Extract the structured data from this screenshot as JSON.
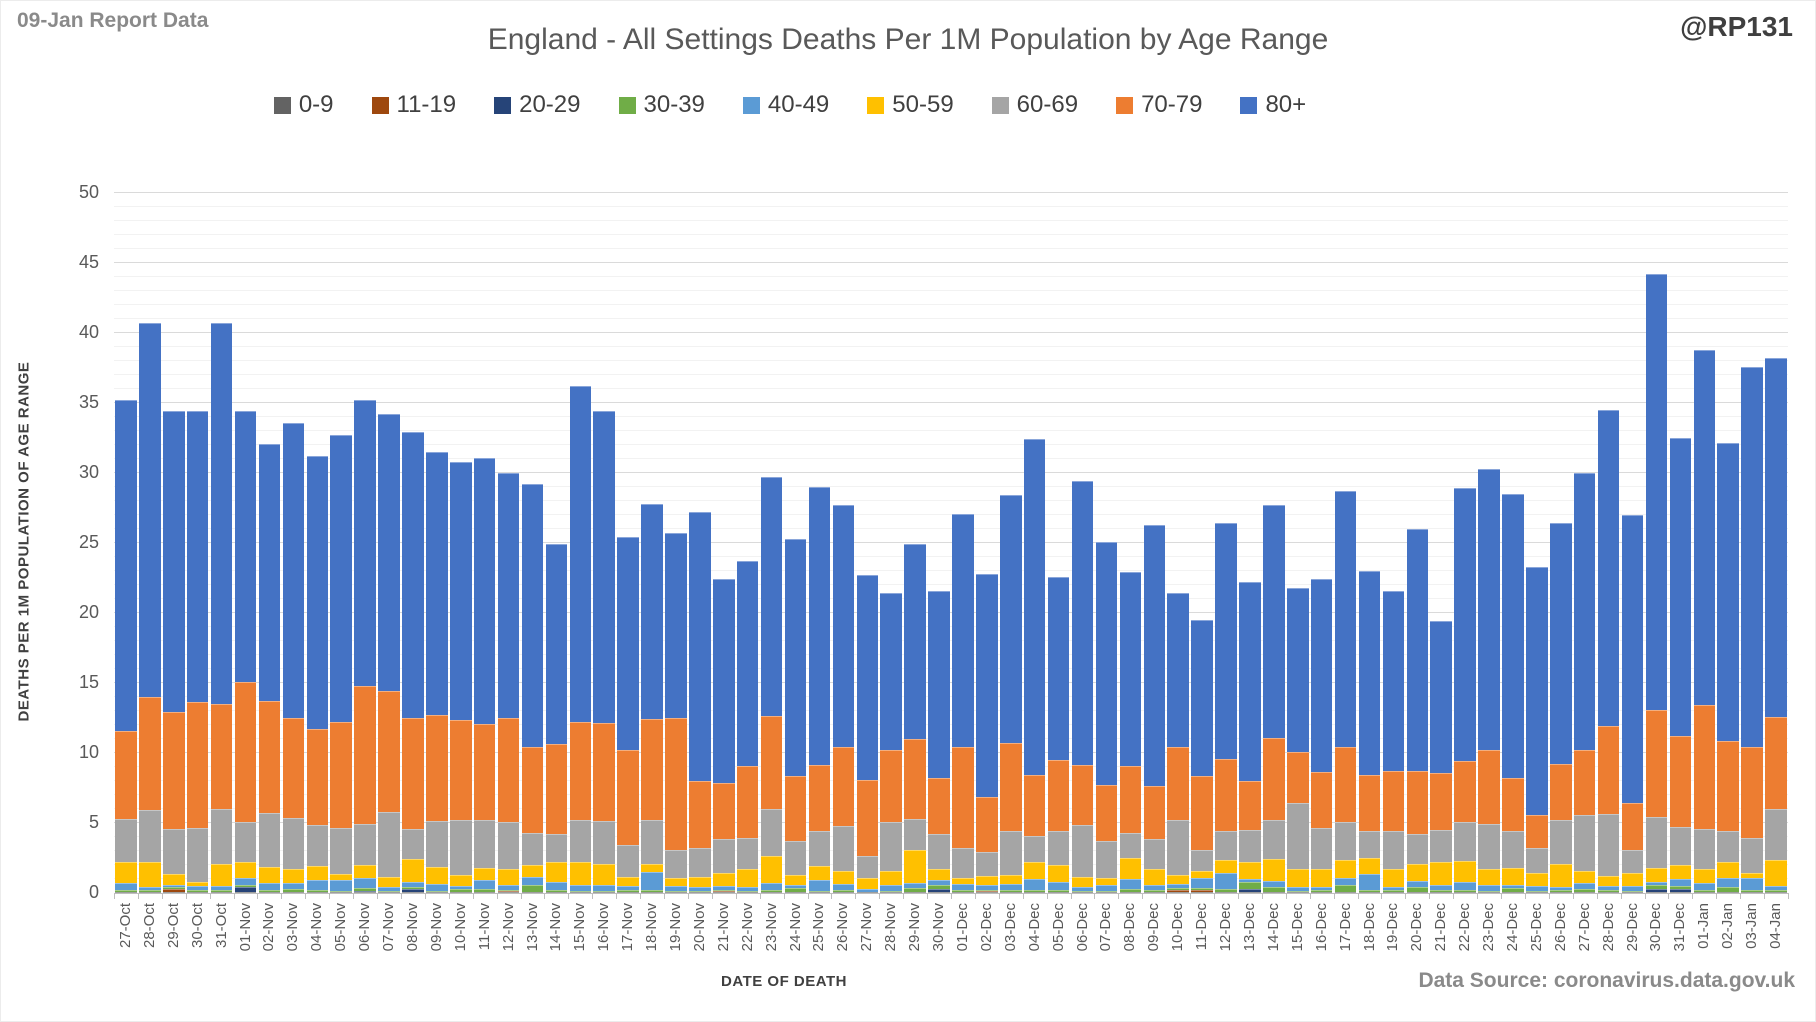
{
  "header": {
    "report_label": "09-Jan Report Data",
    "title": "England - All Settings Deaths Per 1M Population by Age Range",
    "watermark": "@RP131"
  },
  "footer": {
    "source": "Data Source: coronavirus.data.gov.uk"
  },
  "chart_data": {
    "type": "bar",
    "stacked": true,
    "title": "England - All Settings Deaths Per 1M Population by Age Range",
    "xlabel": "DATE OF DEATH",
    "ylabel": "DEATHS PER 1M POPULATION OF AGE RANGE",
    "ylim": [
      0,
      50
    ],
    "ytick_step": 5,
    "minor_grid_step": 1,
    "grid": true,
    "legend_position": "top",
    "axis_color": "#BFBFBF",
    "categories": [
      "27-Oct",
      "28-Oct",
      "29-Oct",
      "30-Oct",
      "31-Oct",
      "01-Nov",
      "02-Nov",
      "03-Nov",
      "04-Nov",
      "05-Nov",
      "06-Nov",
      "07-Nov",
      "08-Nov",
      "09-Nov",
      "10-Nov",
      "11-Nov",
      "12-Nov",
      "13-Nov",
      "14-Nov",
      "15-Nov",
      "16-Nov",
      "17-Nov",
      "18-Nov",
      "19-Nov",
      "20-Nov",
      "21-Nov",
      "22-Nov",
      "23-Nov",
      "24-Nov",
      "25-Nov",
      "26-Nov",
      "27-Nov",
      "28-Nov",
      "29-Nov",
      "30-Nov",
      "01-Dec",
      "02-Dec",
      "03-Dec",
      "04-Dec",
      "05-Dec",
      "06-Dec",
      "07-Dec",
      "08-Dec",
      "09-Dec",
      "10-Dec",
      "11-Dec",
      "12-Dec",
      "13-Dec",
      "14-Dec",
      "15-Dec",
      "16-Dec",
      "17-Dec",
      "18-Dec",
      "19-Dec",
      "20-Dec",
      "21-Dec",
      "22-Dec",
      "23-Dec",
      "24-Dec",
      "25-Dec",
      "26-Dec",
      "27-Dec",
      "28-Dec",
      "29-Dec",
      "30-Dec",
      "31-Dec",
      "01-Jan",
      "02-Jan",
      "03-Jan",
      "04-Jan"
    ],
    "series": [
      {
        "name": "0-9",
        "color": "#636363",
        "values": [
          0.05,
          0.05,
          0.05,
          0.05,
          0.05,
          0.05,
          0.05,
          0.05,
          0.05,
          0.05,
          0.05,
          0.1,
          0.05,
          0.05,
          0.05,
          0.05,
          0.05,
          0.05,
          0.05,
          0.05,
          0.05,
          0.05,
          0.05,
          0.05,
          0.05,
          0.05,
          0.05,
          0.05,
          0.05,
          0.05,
          0.05,
          0.05,
          0.05,
          0.05,
          0.05,
          0.05,
          0.05,
          0.05,
          0.05,
          0.05,
          0.05,
          0.05,
          0.05,
          0.05,
          0.05,
          0.05,
          0.05,
          0.05,
          0.05,
          0.05,
          0.05,
          0.05,
          0.05,
          0.05,
          0.05,
          0.05,
          0.05,
          0.05,
          0.05,
          0.05,
          0.05,
          0.05,
          0.1,
          0.05,
          0.05,
          0.05,
          0.05,
          0.05,
          0.05,
          0.05
        ]
      },
      {
        "name": "11-19",
        "color": "#9E480E",
        "values": [
          0.05,
          0,
          0.25,
          0,
          0,
          0.05,
          0,
          0,
          0,
          0,
          0,
          0,
          0,
          0,
          0,
          0,
          0.1,
          0,
          0,
          0,
          0,
          0,
          0,
          0,
          0,
          0.1,
          0,
          0,
          0,
          0,
          0,
          0,
          0,
          0,
          0,
          0,
          0.1,
          0,
          0,
          0,
          0,
          0,
          0,
          0,
          0.2,
          0.2,
          0,
          0,
          0,
          0,
          0,
          0,
          0,
          0,
          0,
          0,
          0,
          0,
          0,
          0,
          0,
          0,
          0,
          0,
          0,
          0,
          0,
          0,
          0,
          0
        ]
      },
      {
        "name": "20-29",
        "color": "#264478",
        "values": [
          0,
          0,
          0,
          0,
          0,
          0.3,
          0,
          0,
          0,
          0,
          0.1,
          0,
          0.25,
          0,
          0,
          0,
          0,
          0,
          0,
          0,
          0,
          0,
          0,
          0,
          0,
          0,
          0,
          0,
          0,
          0,
          0,
          0,
          0,
          0,
          0.25,
          0,
          0,
          0,
          0,
          0,
          0,
          0,
          0,
          0,
          0,
          0,
          0,
          0.25,
          0,
          0,
          0,
          0,
          0,
          0,
          0,
          0,
          0,
          0,
          0,
          0,
          0,
          0,
          0,
          0,
          0.25,
          0.25,
          0,
          0,
          0,
          0
        ]
      },
      {
        "name": "30-39",
        "color": "#70AD47",
        "values": [
          0.15,
          0.15,
          0.1,
          0.15,
          0.2,
          0.15,
          0.15,
          0.25,
          0.2,
          0.1,
          0.2,
          0.05,
          0.1,
          0.1,
          0.25,
          0.25,
          0.1,
          0.55,
          0.15,
          0.1,
          0.1,
          0.15,
          0.2,
          0.1,
          0.1,
          0.1,
          0.1,
          0.15,
          0.3,
          0.1,
          0.2,
          0.05,
          0.1,
          0.3,
          0.3,
          0.2,
          0.1,
          0.2,
          0.2,
          0.15,
          0.1,
          0.1,
          0.25,
          0.2,
          0.1,
          0.1,
          0.25,
          0.5,
          0.4,
          0.1,
          0.15,
          0.55,
          0.2,
          0.15,
          0.4,
          0.15,
          0.15,
          0.1,
          0.3,
          0.1,
          0.2,
          0.25,
          0.15,
          0.1,
          0.3,
          0.2,
          0.2,
          0.4,
          0.15,
          0.15
        ]
      },
      {
        "name": "40-49",
        "color": "#5B9BD5",
        "values": [
          0.5,
          0.2,
          0.2,
          0.3,
          0.25,
          0.55,
          0.55,
          0.4,
          0.7,
          0.75,
          0.7,
          0.3,
          0.4,
          0.5,
          0.2,
          0.65,
          0.35,
          0.55,
          0.6,
          0.45,
          0.4,
          0.3,
          1.25,
          0.35,
          0.3,
          0.25,
          0.3,
          0.55,
          0.25,
          0.8,
          0.4,
          0.2,
          0.45,
          0.4,
          0.3,
          0.4,
          0.35,
          0.4,
          0.75,
          0.6,
          0.25,
          0.45,
          0.7,
          0.3,
          0.3,
          0.7,
          1.15,
          0.2,
          0.4,
          0.3,
          0.2,
          0.45,
          1.1,
          0.2,
          0.4,
          0.4,
          0.6,
          0.4,
          0.25,
          0.35,
          0.2,
          0.45,
          0.25,
          0.35,
          0.2,
          0.5,
          0.45,
          0.65,
          0.9,
          0.3
        ]
      },
      {
        "name": "50-59",
        "color": "#FFC000",
        "values": [
          1.45,
          1.85,
          0.75,
          0.3,
          1.55,
          1.15,
          1.1,
          1.0,
          1.0,
          0.45,
          0.95,
          0.7,
          1.6,
          1.2,
          0.8,
          0.85,
          1.15,
          0.85,
          1.45,
          1.65,
          1.5,
          0.65,
          0.6,
          0.6,
          0.7,
          0.95,
          1.25,
          1.9,
          0.7,
          1.0,
          0.9,
          0.75,
          1.0,
          2.35,
          0.8,
          0.4,
          0.6,
          0.65,
          1.25,
          1.2,
          0.75,
          0.45,
          1.5,
          1.15,
          0.65,
          0.5,
          0.9,
          1.25,
          1.6,
          1.25,
          1.35,
          1.3,
          1.15,
          1.3,
          1.2,
          1.65,
          1.5,
          1.2,
          1.2,
          0.95,
          1.65,
          0.85,
          0.7,
          0.95,
          1.0,
          1.0,
          1.0,
          1.15,
          0.35,
          1.85
        ]
      },
      {
        "name": "60-69",
        "color": "#A5A5A5",
        "values": [
          3.1,
          3.7,
          3.2,
          3.85,
          3.95,
          2.85,
          3.9,
          3.65,
          2.9,
          3.3,
          2.95,
          4.65,
          2.2,
          3.3,
          3.9,
          3.4,
          3.35,
          2.3,
          1.95,
          3.0,
          3.1,
          2.3,
          3.1,
          1.95,
          2.1,
          2.4,
          2.2,
          3.35,
          2.45,
          2.45,
          3.25,
          1.6,
          3.5,
          2.2,
          2.55,
          2.2,
          1.7,
          3.1,
          1.85,
          2.4,
          3.7,
          2.7,
          1.8,
          2.15,
          3.9,
          1.5,
          2.1,
          2.25,
          2.75,
          4.7,
          2.9,
          2.7,
          1.9,
          2.75,
          2.2,
          2.25,
          2.8,
          3.2,
          2.6,
          1.75,
          3.1,
          4.0,
          4.45,
          1.6,
          3.6,
          2.7,
          2.85,
          2.15,
          2.45,
          3.65
        ]
      },
      {
        "name": "70-79",
        "color": "#ED7D31",
        "values": [
          6.25,
          8.05,
          8.35,
          9.0,
          7.5,
          10.0,
          8.0,
          7.15,
          6.9,
          7.55,
          9.85,
          8.65,
          7.9,
          7.6,
          7.15,
          6.85,
          7.4,
          6.1,
          6.45,
          7.0,
          7.0,
          6.8,
          7.2,
          9.45,
          4.75,
          4.0,
          5.15,
          6.65,
          4.6,
          4.75,
          5.65,
          5.4,
          5.1,
          5.7,
          3.95,
          7.2,
          3.95,
          6.3,
          4.3,
          5.1,
          4.3,
          4.0,
          4.8,
          3.8,
          5.25,
          5.3,
          5.1,
          3.5,
          5.9,
          3.7,
          4.0,
          5.35,
          4.05,
          4.3,
          4.45,
          4.1,
          4.35,
          5.25,
          3.85,
          2.35,
          4.0,
          4.65,
          6.3,
          3.4,
          7.7,
          6.5,
          8.9,
          6.45,
          6.55,
          6.55
        ]
      },
      {
        "name": "80+",
        "color": "#4472C4",
        "values": [
          23.7,
          26.75,
          21.5,
          20.75,
          27.2,
          19.3,
          18.3,
          21.1,
          19.45,
          20.5,
          20.4,
          19.75,
          20.4,
          18.75,
          18.45,
          19.05,
          17.5,
          18.8,
          14.25,
          23.95,
          22.25,
          15.15,
          15.4,
          13.2,
          19.2,
          14.55,
          14.65,
          17.05,
          16.95,
          19.85,
          17.25,
          14.65,
          11.2,
          13.9,
          13.4,
          16.65,
          15.95,
          17.7,
          24.0,
          13.1,
          20.25,
          17.35,
          13.8,
          18.65,
          10.95,
          11.15,
          16.85,
          14.2,
          16.6,
          11.7,
          13.75,
          18.3,
          14.55,
          12.85,
          17.3,
          10.8,
          19.45,
          20.1,
          20.25,
          17.75,
          17.2,
          19.75,
          22.55,
          20.55,
          31.1,
          21.3,
          25.35,
          21.3,
          27.15,
          25.65
        ]
      }
    ]
  }
}
